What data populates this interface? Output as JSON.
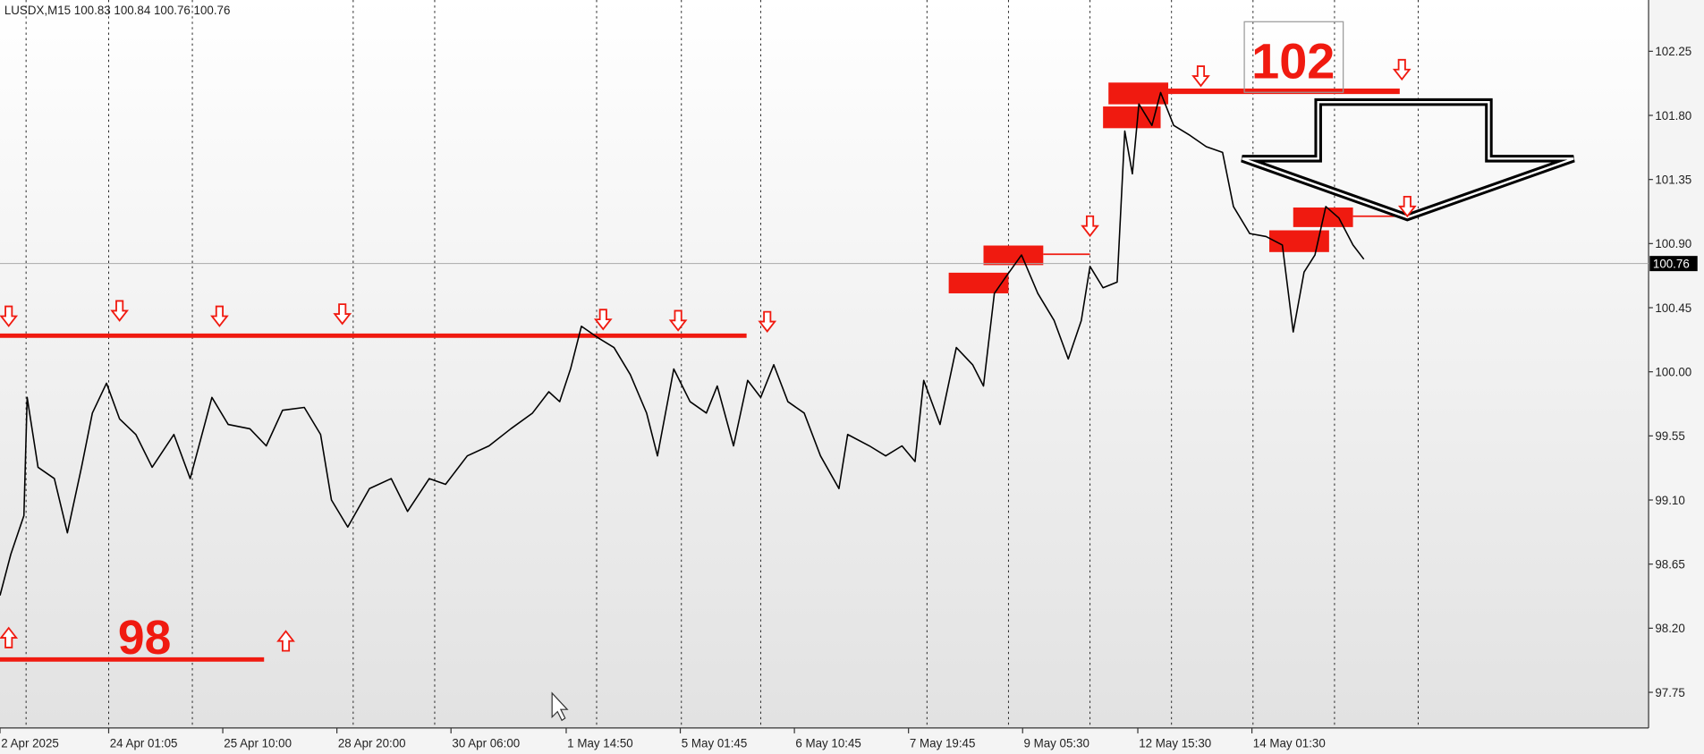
{
  "chart_data": {
    "type": "line",
    "title": "LUSDX,M15  100.83 100.84 100.76 100.76",
    "color": "#000000",
    "x": [
      0,
      10,
      22,
      25,
      35,
      50,
      62,
      75,
      85,
      98,
      110,
      125,
      140,
      160,
      175,
      195,
      210,
      230,
      245,
      260,
      280,
      295,
      305,
      320,
      340,
      360,
      375,
      395,
      410,
      430,
      450,
      470,
      490,
      505,
      515,
      525,
      535,
      550,
      565,
      580,
      595,
      605,
      620,
      635,
      650,
      660,
      675,
      688,
      700,
      712,
      725,
      740,
      755,
      772,
      780,
      800,
      815,
      830,
      842,
      850,
      865,
      880,
      895,
      905,
      915,
      925,
      940,
      955,
      970,
      983,
      995,
      1003,
      1015,
      1028,
      1035,
      1042,
      1048,
      1060,
      1068,
      1080,
      1095,
      1110,
      1125,
      1135,
      1150,
      1165,
      1180,
      1190,
      1200,
      1210,
      1220,
      1232,
      1245,
      1255
    ],
    "values": [
      98.43,
      98.72,
      98.99,
      99.82,
      99.33,
      99.25,
      98.87,
      99.33,
      99.71,
      99.92,
      99.67,
      99.56,
      99.33,
      99.56,
      99.25,
      99.82,
      99.63,
      99.6,
      99.48,
      99.73,
      99.75,
      99.56,
      99.1,
      98.91,
      99.18,
      99.25,
      99.02,
      99.25,
      99.21,
      99.41,
      99.48,
      99.6,
      99.71,
      99.86,
      99.79,
      100.02,
      100.32,
      100.24,
      100.17,
      99.98,
      99.71,
      99.41,
      100.02,
      99.79,
      99.71,
      99.9,
      99.48,
      99.94,
      99.82,
      100.05,
      99.79,
      99.71,
      99.41,
      99.18,
      99.56,
      99.48,
      99.41,
      99.48,
      99.37,
      99.94,
      99.63,
      100.17,
      100.05,
      99.9,
      100.55,
      100.66,
      100.82,
      100.55,
      100.36,
      100.09,
      100.36,
      100.74,
      100.59,
      100.63,
      101.69,
      101.39,
      101.88,
      101.73,
      101.96,
      101.73,
      101.66,
      101.58,
      101.54,
      101.16,
      100.97,
      100.95,
      100.89,
      100.28,
      100.7,
      100.82,
      101.16,
      101.08,
      100.89,
      100.79
    ],
    "xlim": [
      0,
      1515
    ],
    "xticks": [
      {
        "value": 0,
        "label": "2 Apr 2025"
      },
      {
        "value": 100,
        "label": "24 Apr 01:05"
      },
      {
        "value": 205,
        "label": "25 Apr 10:00"
      },
      {
        "value": 310,
        "label": "28 Apr 20:00"
      },
      {
        "value": 415,
        "label": "30 Apr 06:00"
      },
      {
        "value": 521,
        "label": "1 May 14:50"
      },
      {
        "value": 626,
        "label": "5 May 01:45"
      },
      {
        "value": 731,
        "label": "6 May 10:45"
      },
      {
        "value": 836,
        "label": "7 May 19:45"
      },
      {
        "value": 941,
        "label": "9 May 05:30"
      },
      {
        "value": 1047,
        "label": "12 May 15:30"
      },
      {
        "value": 1152,
        "label": "14 May 01:30"
      }
    ],
    "ylim": [
      97.5,
      102.61
    ],
    "yticks": [
      97.75,
      {
        "value": 98.2,
        "label": "98.20"
      },
      98.65,
      {
        "value": 99.1,
        "label": "99.10"
      },
      99.55,
      {
        "value": 100,
        "label": "100.00"
      },
      100.45,
      {
        "value": 100.9,
        "label": "100.90"
      },
      101.35,
      {
        "value": 101.8,
        "label": "101.80"
      },
      102.25
    ],
    "last_price": 100.76,
    "annotations": [
      "98",
      "102"
    ]
  }
}
